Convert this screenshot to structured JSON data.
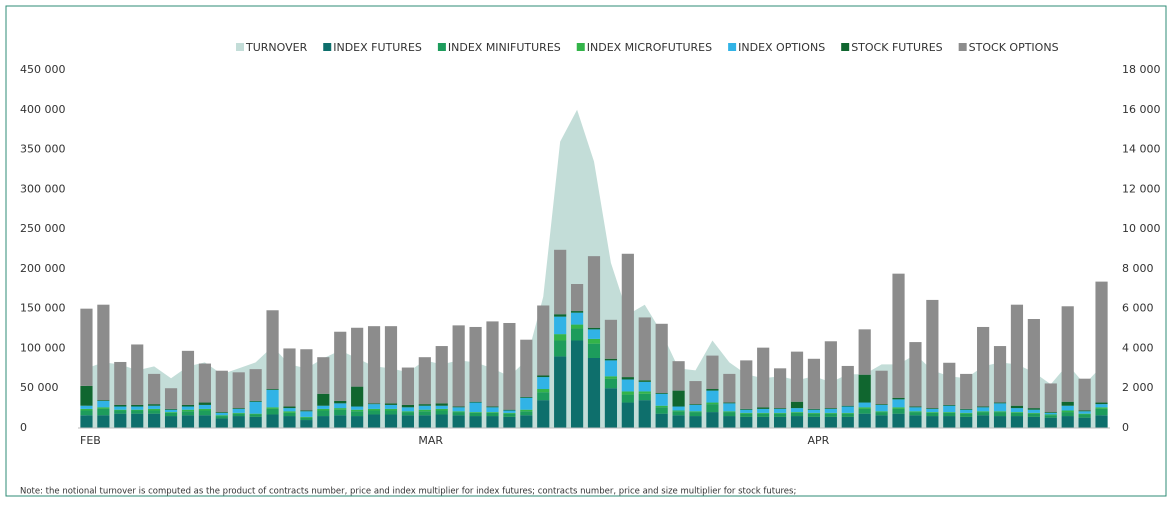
{
  "chart_data": {
    "type": "stacked-bar",
    "categories": [
      "FEB",
      null,
      null,
      null,
      null,
      null,
      null,
      null,
      null,
      null,
      null,
      null,
      null,
      null,
      null,
      null,
      null,
      null,
      null,
      null,
      "MAR",
      null,
      null,
      null,
      null,
      null,
      null,
      null,
      null,
      null,
      null,
      null,
      null,
      null,
      null,
      null,
      null,
      null,
      null,
      null,
      null,
      null,
      null,
      "APR",
      null,
      null,
      null,
      null,
      null,
      null,
      null,
      null,
      null,
      null,
      null,
      null,
      null,
      null,
      null,
      null,
      null
    ],
    "ylim": [
      0,
      450000
    ],
    "yticks": [
      0,
      {
        "value": 50000,
        "label": "50 000"
      },
      {
        "value": 100000,
        "label": "100 000"
      },
      {
        "value": 150000,
        "label": "150 000"
      },
      {
        "value": 200000,
        "label": "200 000"
      },
      {
        "value": 250000,
        "label": "250 000"
      },
      {
        "value": 300000,
        "label": "300 000"
      },
      {
        "value": 350000,
        "label": "350 000"
      },
      {
        "value": 400000,
        "label": "400 000"
      },
      {
        "value": 450000,
        "label": "450 000"
      }
    ],
    "y2lim": [
      0,
      18000
    ],
    "y2ticks": [
      0,
      {
        "value": 2000,
        "label": "2 000"
      },
      {
        "value": 4000,
        "label": "4 000"
      },
      {
        "value": 6000,
        "label": "6 000"
      },
      {
        "value": 8000,
        "label": "8 000"
      },
      {
        "value": 10000,
        "label": "10 000"
      },
      {
        "value": 12000,
        "label": "12 000"
      },
      {
        "value": 14000,
        "label": "14 000"
      },
      {
        "value": 16000,
        "label": "16 000"
      },
      {
        "value": 18000,
        "label": "18 000"
      }
    ],
    "legend": "top",
    "series": [
      {
        "name": "TURNOVER",
        "type": "area",
        "axis": "y2",
        "color": "#c3ddd8",
        "values": [
          3000,
          3300,
          3200,
          2900,
          3100,
          2500,
          3100,
          3300,
          2700,
          3000,
          3300,
          4100,
          3200,
          3000,
          3500,
          3900,
          3500,
          3100,
          3000,
          2800,
          3400,
          3200,
          3400,
          3300,
          3000,
          2600,
          3400,
          6600,
          14400,
          16000,
          13400,
          8300,
          5700,
          6200,
          4800,
          3000,
          2900,
          4400,
          3300,
          2700,
          2500,
          2600,
          2400,
          2600,
          2300,
          2700,
          2700,
          3200,
          3200,
          3700,
          2900,
          2600,
          2500,
          3100,
          3300,
          3200,
          2800,
          2200,
          3200,
          2200,
          3100
        ]
      },
      {
        "name": "INDEX FUTURES",
        "color": "#0e6f6c",
        "values": [
          16000,
          16000,
          18000,
          18000,
          18000,
          15000,
          16000,
          16000,
          12000,
          15000,
          14000,
          17000,
          15000,
          10000,
          15000,
          16000,
          15000,
          17000,
          17000,
          16000,
          16000,
          17000,
          16000,
          15000,
          15000,
          14000,
          16000,
          35000,
          90000,
          110000,
          88000,
          50000,
          32000,
          35000,
          18000,
          16000,
          15000,
          20000,
          15000,
          14000,
          14000,
          14000,
          15000,
          14000,
          14000,
          14000,
          18000,
          16000,
          18000,
          16000,
          15000,
          15000,
          14000,
          16000,
          15000,
          15000,
          14000,
          13000,
          15000,
          13000,
          16000
        ]
      },
      {
        "name": "INDEX MINIFUTURES",
        "color": "#1d9c5c",
        "values": [
          6000,
          8000,
          4000,
          4000,
          4000,
          4000,
          5000,
          6000,
          3000,
          3000,
          3000,
          7000,
          4000,
          3000,
          7000,
          7000,
          6000,
          5000,
          5000,
          4000,
          5000,
          5000,
          4000,
          4000,
          4000,
          4000,
          5000,
          10000,
          20000,
          15000,
          18000,
          12000,
          10000,
          8000,
          8000,
          5000,
          5000,
          10000,
          5000,
          4000,
          4000,
          4000,
          4000,
          4000,
          4000,
          4000,
          6000,
          4000,
          6000,
          4000,
          4000,
          4000,
          4000,
          4000,
          5000,
          4000,
          4000,
          3000,
          5000,
          4000,
          8000
        ]
      },
      {
        "name": "INDEX MICROFUTURES",
        "color": "#33b449",
        "values": [
          2000,
          2000,
          1000,
          1000,
          2000,
          1000,
          2000,
          2000,
          1000,
          1000,
          1000,
          2000,
          2000,
          1000,
          2000,
          2000,
          2000,
          2000,
          2000,
          1000,
          2000,
          2000,
          1000,
          1000,
          1000,
          1000,
          2000,
          4000,
          8000,
          5000,
          6000,
          3000,
          4000,
          3000,
          2000,
          1000,
          1000,
          2000,
          1000,
          1000,
          1000,
          1000,
          1000,
          1000,
          1000,
          1000,
          2000,
          1000,
          2000,
          1000,
          1000,
          1000,
          1000,
          1000,
          1000,
          1000,
          1000,
          1000,
          2000,
          1000,
          2000
        ]
      },
      {
        "name": "INDEX OPTIONS",
        "color": "#31b3e6",
        "values": [
          4000,
          8000,
          4000,
          4000,
          4000,
          3000,
          4000,
          5000,
          3000,
          5000,
          15000,
          22000,
          4000,
          7000,
          4000,
          6000,
          4000,
          6000,
          5000,
          5000,
          5000,
          4000,
          5000,
          12000,
          6000,
          3000,
          15000,
          15000,
          22000,
          15000,
          12000,
          20000,
          15000,
          12000,
          15000,
          5000,
          8000,
          15000,
          10000,
          4000,
          5000,
          5000,
          5000,
          4000,
          5000,
          8000,
          6000,
          8000,
          10000,
          5000,
          4000,
          8000,
          4000,
          5000,
          10000,
          5000,
          4000,
          2000,
          6000,
          3000,
          4000
        ]
      },
      {
        "name": "STOCK FUTURES",
        "color": "#10662f",
        "values": [
          25000,
          1000,
          2000,
          2000,
          2000,
          1000,
          2000,
          3000,
          1000,
          1000,
          1000,
          1000,
          2000,
          1000,
          15000,
          3000,
          25000,
          1000,
          2000,
          3000,
          2000,
          3000,
          1000,
          1000,
          1000,
          1000,
          1000,
          2000,
          3000,
          2000,
          2000,
          2000,
          3000,
          2000,
          1000,
          20000,
          1000,
          2000,
          1000,
          1000,
          2000,
          1000,
          8000,
          1000,
          1000,
          1000,
          35000,
          1000,
          2000,
          1000,
          1000,
          1000,
          1000,
          1000,
          1000,
          3000,
          2000,
          1000,
          5000,
          1000,
          2000
        ]
      },
      {
        "name": "STOCK OPTIONS",
        "color": "#8c8c8c",
        "values": [
          97000,
          120000,
          54000,
          76000,
          38000,
          26000,
          68000,
          49000,
          52000,
          45000,
          40000,
          99000,
          73000,
          77000,
          46000,
          87000,
          74000,
          97000,
          97000,
          47000,
          59000,
          72000,
          102000,
          94000,
          107000,
          109000,
          72000,
          88000,
          81000,
          34000,
          90000,
          49000,
          155000,
          79000,
          87000,
          37000,
          29000,
          42000,
          36000,
          61000,
          75000,
          50000,
          63000,
          63000,
          84000,
          50000,
          57000,
          42000,
          156000,
          81000,
          136000,
          53000,
          44000,
          100000,
          71000,
          127000,
          112000,
          36000,
          120000,
          40000,
          152000
        ]
      }
    ],
    "note": "Note: the notional turnover is computed as the product of contracts number, price and index multiplier for index futures; contracts number, price and size multiplier for stock futures;"
  }
}
